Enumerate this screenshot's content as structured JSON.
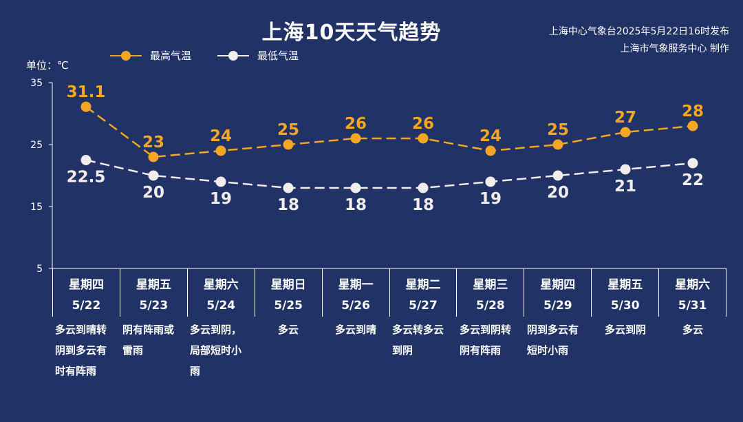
{
  "header": {
    "title": "上海10天天气趋势",
    "publisher_line1": "上海中心气象台2025年5月22日16时发布",
    "publisher_line2": "上海市气象服务中心 制作"
  },
  "legend": {
    "high": "最高气温",
    "low": "最低气温"
  },
  "unit_label": "单位：℃",
  "colors": {
    "background": "#213266",
    "high": "#f5a623",
    "low": "#f2eded"
  },
  "chart_data": {
    "type": "line",
    "ylim": [
      5,
      35
    ],
    "yticks": [
      5,
      15,
      25,
      35
    ],
    "grid": false,
    "legend_position": "top-left",
    "categories": [
      "5/22",
      "5/23",
      "5/24",
      "5/25",
      "5/26",
      "5/27",
      "5/28",
      "5/29",
      "5/30",
      "5/31"
    ],
    "series": [
      {
        "name": "最高气温",
        "values": [
          31.1,
          23,
          24,
          25,
          26,
          26,
          24,
          25,
          27,
          28
        ],
        "labels": [
          "31.1",
          "23",
          "24",
          "25",
          "26",
          "26",
          "24",
          "25",
          "27",
          "28"
        ]
      },
      {
        "name": "最低气温",
        "values": [
          22.5,
          20,
          19,
          18,
          18,
          18,
          19,
          20,
          21,
          22
        ],
        "labels": [
          "22.5",
          "20",
          "19",
          "18",
          "18",
          "18",
          "19",
          "20",
          "21",
          "22"
        ]
      }
    ]
  },
  "days": [
    {
      "weekday": "星期四",
      "date": "5/22",
      "weather": [
        "多云到晴转",
        "阴到多云有",
        "时有阵雨"
      ]
    },
    {
      "weekday": "星期五",
      "date": "5/23",
      "weather": [
        "阴有阵雨或",
        "雷雨"
      ]
    },
    {
      "weekday": "星期六",
      "date": "5/24",
      "weather": [
        "多云到阴，",
        "局部短时小",
        "雨"
      ]
    },
    {
      "weekday": "星期日",
      "date": "5/25",
      "weather": [
        "多云"
      ]
    },
    {
      "weekday": "星期一",
      "date": "5/26",
      "weather": [
        "多云到晴"
      ]
    },
    {
      "weekday": "星期二",
      "date": "5/27",
      "weather": [
        "多云转多云",
        "到阴"
      ]
    },
    {
      "weekday": "星期三",
      "date": "5/28",
      "weather": [
        "多云到阴转",
        "阴有阵雨"
      ]
    },
    {
      "weekday": "星期四",
      "date": "5/29",
      "weather": [
        "阴到多云有",
        "短时小雨"
      ]
    },
    {
      "weekday": "星期五",
      "date": "5/30",
      "weather": [
        "多云到阴"
      ]
    },
    {
      "weekday": "星期六",
      "date": "5/31",
      "weather": [
        "多云"
      ]
    }
  ]
}
